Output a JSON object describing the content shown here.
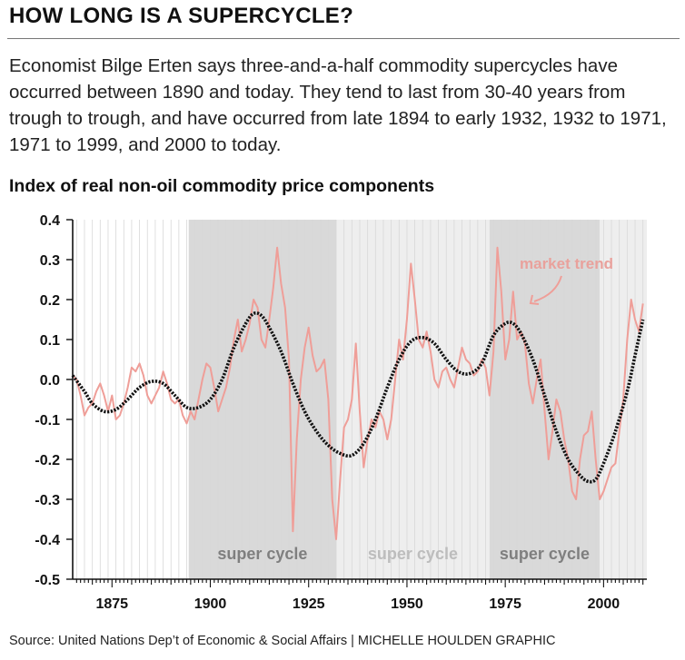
{
  "header": {
    "headline": "HOW LONG IS A SUPERCYCLE?",
    "deck": "Economist Bilge Erten says three-and-a-half commodity supercycles have occurred between 1890 and today. They tend to last from 30-40 years from trough to trough, and have occurred from late 1894 to early 1932, 1932 to 1971, 1971 to 1999, and 2000 to today."
  },
  "footer": {
    "source": "Source: United Nations Dep’t of Economic & Social Affairs  |  MICHELLE HOULDEN GRAPHIC"
  },
  "colors": {
    "price_line": "#ef9e98",
    "trend_line": "#111111",
    "cycle_dark": "#d9d9d9",
    "cycle_light": "#eeeeee",
    "cycle_label_dark": "#7f7f7f",
    "cycle_label_light": "#bdbdbd",
    "grid": "#d8d8d8"
  },
  "chart_data": {
    "type": "line",
    "title": "Index of real non-oil commodity price components",
    "xlim": [
      1865,
      2011
    ],
    "ylim": [
      -0.5,
      0.4
    ],
    "x_ticks": [
      1875,
      1900,
      1925,
      1950,
      1975,
      2000
    ],
    "y_ticks": [
      0.4,
      0.3,
      0.2,
      0.1,
      0.0,
      -0.1,
      -0.2,
      -0.3,
      -0.4,
      -0.5
    ],
    "y_tick_labels": [
      "0.4",
      "0.3",
      "0.2",
      "0.1",
      "0.0",
      "-0.1",
      "-0.2",
      "-0.3",
      "-0.4",
      "-0.5"
    ],
    "grid": true,
    "annotation": "market trend",
    "cycles": [
      {
        "label": "super cycle",
        "start": 1894.5,
        "end": 1932,
        "shade": "dark"
      },
      {
        "label": "super cycle",
        "start": 1932,
        "end": 1971,
        "shade": "light"
      },
      {
        "label": "super cycle",
        "start": 1971,
        "end": 1999,
        "shade": "dark"
      },
      {
        "label": "",
        "start": 1999,
        "end": 2011,
        "shade": "light"
      }
    ],
    "series": [
      {
        "values": [
          [
            1865,
            0.01
          ],
          [
            1866,
            0.0
          ],
          [
            1867,
            -0.04
          ],
          [
            1868,
            -0.09
          ],
          [
            1869,
            -0.07
          ],
          [
            1870,
            -0.06
          ],
          [
            1871,
            -0.03
          ],
          [
            1872,
            -0.01
          ],
          [
            1873,
            -0.04
          ],
          [
            1874,
            -0.08
          ],
          [
            1875,
            -0.04
          ],
          [
            1876,
            -0.1
          ],
          [
            1877,
            -0.09
          ],
          [
            1878,
            -0.06
          ],
          [
            1879,
            -0.02
          ],
          [
            1880,
            0.03
          ],
          [
            1881,
            0.02
          ],
          [
            1882,
            0.04
          ],
          [
            1883,
            0.01
          ],
          [
            1884,
            -0.04
          ],
          [
            1885,
            -0.06
          ],
          [
            1886,
            -0.04
          ],
          [
            1887,
            -0.02
          ],
          [
            1888,
            0.02
          ],
          [
            1889,
            -0.01
          ],
          [
            1890,
            -0.05
          ],
          [
            1891,
            -0.06
          ],
          [
            1892,
            -0.05
          ],
          [
            1893,
            -0.09
          ],
          [
            1894,
            -0.11
          ],
          [
            1895,
            -0.08
          ],
          [
            1896,
            -0.1
          ],
          [
            1897,
            -0.05
          ],
          [
            1898,
            0.0
          ],
          [
            1899,
            0.04
          ],
          [
            1900,
            0.03
          ],
          [
            1901,
            -0.02
          ],
          [
            1902,
            -0.08
          ],
          [
            1903,
            -0.05
          ],
          [
            1904,
            -0.02
          ],
          [
            1905,
            0.03
          ],
          [
            1906,
            0.1
          ],
          [
            1907,
            0.15
          ],
          [
            1908,
            0.07
          ],
          [
            1909,
            0.1
          ],
          [
            1910,
            0.14
          ],
          [
            1911,
            0.2
          ],
          [
            1912,
            0.18
          ],
          [
            1913,
            0.1
          ],
          [
            1914,
            0.08
          ],
          [
            1915,
            0.15
          ],
          [
            1916,
            0.23
          ],
          [
            1917,
            0.33
          ],
          [
            1918,
            0.24
          ],
          [
            1919,
            0.18
          ],
          [
            1920,
            0.05
          ],
          [
            1921,
            -0.38
          ],
          [
            1922,
            -0.15
          ],
          [
            1923,
            0.0
          ],
          [
            1924,
            0.08
          ],
          [
            1925,
            0.13
          ],
          [
            1926,
            0.06
          ],
          [
            1927,
            0.02
          ],
          [
            1928,
            0.03
          ],
          [
            1929,
            0.05
          ],
          [
            1930,
            -0.05
          ],
          [
            1931,
            -0.3
          ],
          [
            1932,
            -0.4
          ],
          [
            1933,
            -0.25
          ],
          [
            1934,
            -0.12
          ],
          [
            1935,
            -0.1
          ],
          [
            1936,
            -0.05
          ],
          [
            1937,
            0.09
          ],
          [
            1938,
            -0.08
          ],
          [
            1939,
            -0.22
          ],
          [
            1940,
            -0.15
          ],
          [
            1941,
            -0.1
          ],
          [
            1942,
            -0.12
          ],
          [
            1943,
            -0.08
          ],
          [
            1944,
            -0.1
          ],
          [
            1945,
            -0.15
          ],
          [
            1946,
            -0.1
          ],
          [
            1947,
            0.0
          ],
          [
            1948,
            0.1
          ],
          [
            1949,
            0.05
          ],
          [
            1950,
            0.15
          ],
          [
            1951,
            0.29
          ],
          [
            1952,
            0.2
          ],
          [
            1953,
            0.1
          ],
          [
            1954,
            0.08
          ],
          [
            1955,
            0.12
          ],
          [
            1956,
            0.07
          ],
          [
            1957,
            0.0
          ],
          [
            1958,
            -0.02
          ],
          [
            1959,
            0.02
          ],
          [
            1960,
            0.03
          ],
          [
            1961,
            0.0
          ],
          [
            1962,
            -0.02
          ],
          [
            1963,
            0.03
          ],
          [
            1964,
            0.08
          ],
          [
            1965,
            0.05
          ],
          [
            1966,
            0.04
          ],
          [
            1967,
            0.01
          ],
          [
            1968,
            0.02
          ],
          [
            1969,
            0.05
          ],
          [
            1970,
            0.03
          ],
          [
            1971,
            -0.04
          ],
          [
            1972,
            0.07
          ],
          [
            1973,
            0.33
          ],
          [
            1974,
            0.22
          ],
          [
            1975,
            0.05
          ],
          [
            1976,
            0.1
          ],
          [
            1977,
            0.22
          ],
          [
            1978,
            0.1
          ],
          [
            1979,
            0.12
          ],
          [
            1980,
            0.09
          ],
          [
            1981,
            -0.01
          ],
          [
            1982,
            -0.06
          ],
          [
            1983,
            0.0
          ],
          [
            1984,
            0.05
          ],
          [
            1985,
            -0.08
          ],
          [
            1986,
            -0.2
          ],
          [
            1987,
            -0.13
          ],
          [
            1988,
            -0.05
          ],
          [
            1989,
            -0.08
          ],
          [
            1990,
            -0.15
          ],
          [
            1991,
            -0.2
          ],
          [
            1992,
            -0.28
          ],
          [
            1993,
            -0.3
          ],
          [
            1994,
            -0.2
          ],
          [
            1995,
            -0.14
          ],
          [
            1996,
            -0.13
          ],
          [
            1997,
            -0.08
          ],
          [
            1998,
            -0.2
          ],
          [
            1999,
            -0.3
          ],
          [
            2000,
            -0.28
          ],
          [
            2001,
            -0.25
          ],
          [
            2002,
            -0.22
          ],
          [
            2003,
            -0.21
          ],
          [
            2004,
            -0.13
          ],
          [
            2005,
            -0.05
          ],
          [
            2006,
            0.1
          ],
          [
            2007,
            0.2
          ],
          [
            2008,
            0.15
          ],
          [
            2009,
            0.12
          ],
          [
            2010,
            0.19
          ]
        ]
      },
      {
        "values": [
          [
            1865,
            0.01
          ],
          [
            1868,
            -0.03
          ],
          [
            1870,
            -0.06
          ],
          [
            1873,
            -0.08
          ],
          [
            1876,
            -0.075
          ],
          [
            1879,
            -0.05
          ],
          [
            1882,
            -0.02
          ],
          [
            1885,
            -0.005
          ],
          [
            1888,
            -0.01
          ],
          [
            1891,
            -0.04
          ],
          [
            1894,
            -0.07
          ],
          [
            1897,
            -0.07
          ],
          [
            1900,
            -0.05
          ],
          [
            1903,
            0.0
          ],
          [
            1906,
            0.08
          ],
          [
            1909,
            0.14
          ],
          [
            1911,
            0.165
          ],
          [
            1913,
            0.16
          ],
          [
            1915,
            0.13
          ],
          [
            1918,
            0.07
          ],
          [
            1921,
            -0.01
          ],
          [
            1924,
            -0.08
          ],
          [
            1927,
            -0.13
          ],
          [
            1930,
            -0.165
          ],
          [
            1933,
            -0.185
          ],
          [
            1936,
            -0.19
          ],
          [
            1939,
            -0.16
          ],
          [
            1942,
            -0.1
          ],
          [
            1945,
            -0.02
          ],
          [
            1948,
            0.05
          ],
          [
            1951,
            0.095
          ],
          [
            1954,
            0.105
          ],
          [
            1957,
            0.09
          ],
          [
            1960,
            0.05
          ],
          [
            1963,
            0.02
          ],
          [
            1966,
            0.015
          ],
          [
            1969,
            0.04
          ],
          [
            1972,
            0.11
          ],
          [
            1975,
            0.14
          ],
          [
            1977,
            0.14
          ],
          [
            1979,
            0.115
          ],
          [
            1982,
            0.05
          ],
          [
            1985,
            -0.04
          ],
          [
            1988,
            -0.13
          ],
          [
            1991,
            -0.2
          ],
          [
            1994,
            -0.24
          ],
          [
            1996,
            -0.255
          ],
          [
            1998,
            -0.25
          ],
          [
            2000,
            -0.21
          ],
          [
            2003,
            -0.13
          ],
          [
            2006,
            -0.03
          ],
          [
            2008,
            0.06
          ],
          [
            2010,
            0.15
          ]
        ]
      }
    ]
  }
}
